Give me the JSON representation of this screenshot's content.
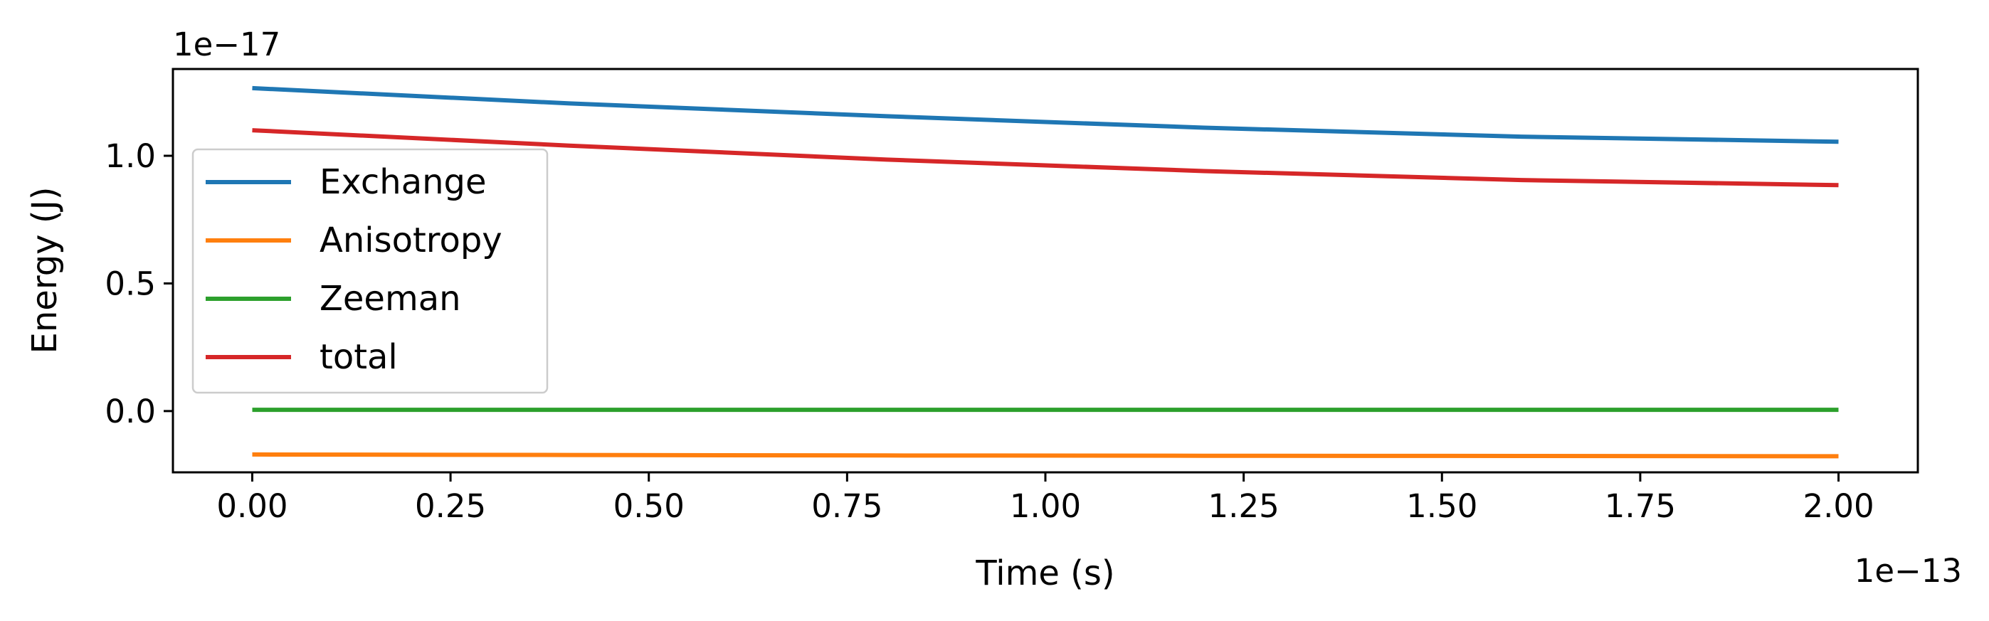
{
  "chart_data": {
    "type": "line",
    "title": "",
    "xlabel": "Time (s)",
    "ylabel": "Energy (J)",
    "x_offset_label": "1e−13",
    "y_offset_label": "1e−17",
    "xlim": [
      -0.1,
      2.1
    ],
    "ylim": [
      -0.24,
      1.34
    ],
    "x_ticks": [
      0.0,
      0.25,
      0.5,
      0.75,
      1.0,
      1.25,
      1.5,
      1.75,
      2.0
    ],
    "x_tick_labels": [
      "0.00",
      "0.25",
      "0.50",
      "0.75",
      "1.00",
      "1.25",
      "1.50",
      "1.75",
      "2.00"
    ],
    "y_ticks": [
      0.0,
      0.5,
      1.0
    ],
    "y_tick_labels": [
      "0.0",
      "0.5",
      "1.0"
    ],
    "grid": false,
    "legend_position": "left",
    "x": [
      0.0,
      0.4,
      0.8,
      1.2,
      1.6,
      2.0
    ],
    "series": [
      {
        "name": "Exchange",
        "color": "#1f77b4",
        "values": [
          1.265,
          1.205,
          1.155,
          1.11,
          1.075,
          1.055
        ]
      },
      {
        "name": "Anisotropy",
        "color": "#ff7f0e",
        "values": [
          -0.17,
          -0.172,
          -0.174,
          -0.175,
          -0.176,
          -0.177
        ]
      },
      {
        "name": "Zeeman",
        "color": "#2ca02c",
        "values": [
          0.005,
          0.005,
          0.005,
          0.005,
          0.005,
          0.005
        ]
      },
      {
        "name": "total",
        "color": "#d62728",
        "values": [
          1.1,
          1.04,
          0.985,
          0.94,
          0.905,
          0.885
        ]
      }
    ]
  }
}
